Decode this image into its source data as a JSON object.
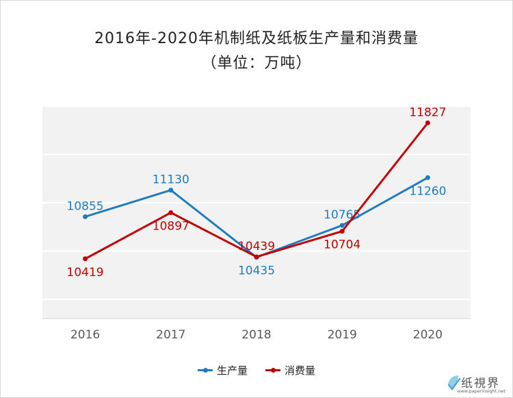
{
  "chart_data": {
    "type": "line",
    "title": "2016年-2020年机制纸及纸板生产量和消费量",
    "subtitle": "（单位：万吨）",
    "categories": [
      "2016",
      "2017",
      "2018",
      "2019",
      "2020"
    ],
    "ylim": [
      9800,
      12000
    ],
    "grid": true,
    "legend_position": "bottom-center",
    "series": [
      {
        "name": "生产量",
        "color": "#1f7cc1",
        "values": [
          10855,
          11130,
          10435,
          10765,
          11260
        ]
      },
      {
        "name": "消费量",
        "color": "#c00000",
        "values": [
          10419,
          10897,
          10439,
          10704,
          11827
        ]
      }
    ]
  },
  "logo": {
    "text": "纸視界",
    "url": "www.paperinsight.net"
  }
}
